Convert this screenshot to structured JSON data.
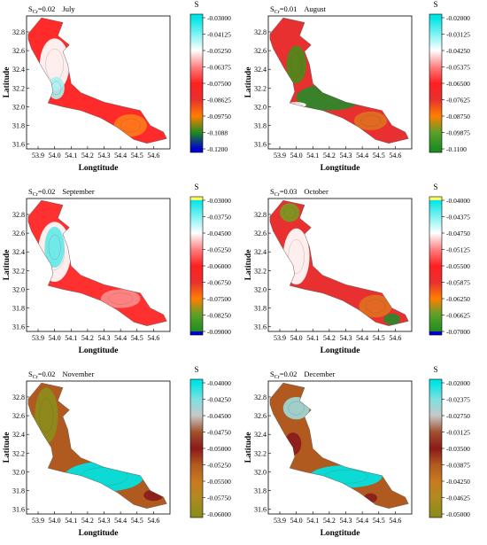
{
  "chart_data": [
    {
      "type": "heatmap",
      "header_prefix": "S",
      "header_sub": "Cr",
      "header_value": "=0.02",
      "month": "July",
      "xlabel": "Longtitude",
      "ylabel": "Latitude",
      "xticks": [
        "53.9",
        "54.0",
        "54.1",
        "54.2",
        "54.3",
        "54.4",
        "54.5",
        "54.6"
      ],
      "yticks": [
        "32.8",
        "32.6",
        "32.4",
        "32.2",
        "32.0",
        "31.8",
        "31.6"
      ],
      "xlim": [
        53.83,
        54.7
      ],
      "ylim": [
        31.55,
        32.97
      ],
      "colorbar": {
        "title": "S",
        "ticks": [
          "-0.03000",
          "-0.04125",
          "-0.05250",
          "-0.06375",
          "-0.07500",
          "-0.08625",
          "-0.09750",
          "-0.1088",
          "-0.1200"
        ],
        "colors": [
          "#00e5e5",
          "#7ff2f2",
          "#ffffff",
          "#ff8080",
          "#ff2020",
          "#e83030",
          "#ff7f00",
          "#1f8c1f",
          "#0000cc"
        ],
        "top_cap": "#00e5e5",
        "bottom_cap": "#0000cc"
      },
      "region": {
        "fill": "#ff2a2a",
        "patches": [
          {
            "color": "#ffffff",
            "cx": 54.0,
            "cy": 32.45,
            "rx": 0.09,
            "ry": 0.28
          },
          {
            "color": "#aaf0f0",
            "cx": 54.01,
            "cy": 32.2,
            "rx": 0.05,
            "ry": 0.12
          },
          {
            "color": "#ff7a1a",
            "cx": 54.46,
            "cy": 31.8,
            "rx": 0.1,
            "ry": 0.12
          }
        ]
      }
    },
    {
      "type": "heatmap",
      "header_prefix": "S",
      "header_sub": "Cr",
      "header_value": "=0.01",
      "month": "August",
      "xlabel": "Longtitude",
      "ylabel": "Latitude",
      "xticks": [
        "53.9",
        "54.0",
        "54.1",
        "54.2",
        "54.3",
        "54.4",
        "54.5",
        "54.6"
      ],
      "yticks": [
        "32.8",
        "32.6",
        "32.4",
        "32.2",
        "32.0",
        "31.8",
        "31.6"
      ],
      "xlim": [
        53.83,
        54.7
      ],
      "ylim": [
        31.55,
        32.97
      ],
      "colorbar": {
        "title": "S",
        "ticks": [
          "-0.02000",
          "-0.03125",
          "-0.04250",
          "-0.05375",
          "-0.06500",
          "-0.07625",
          "-0.08750",
          "-0.09875",
          "-0.1100"
        ],
        "colors": [
          "#00e5e5",
          "#7ff2f2",
          "#ffffff",
          "#ff8080",
          "#ff2020",
          "#e83030",
          "#ff7f00",
          "#5aa02a",
          "#1f8c1f"
        ],
        "top_cap": "#00e5e5",
        "bottom_cap": "#1f8c1f"
      },
      "region": {
        "fill": "#e83030",
        "patches": [
          {
            "color": "#2a8a2a",
            "cx": 54.2,
            "cy": 32.1,
            "rx": 0.2,
            "ry": 0.14
          },
          {
            "color": "#4d8a1a",
            "cx": 54.0,
            "cy": 32.45,
            "rx": 0.06,
            "ry": 0.2
          },
          {
            "color": "#ffffff",
            "cx": 54.0,
            "cy": 32.02,
            "rx": 0.06,
            "ry": 0.03
          },
          {
            "color": "#e07020",
            "cx": 54.45,
            "cy": 31.85,
            "rx": 0.1,
            "ry": 0.1
          }
        ]
      }
    },
    {
      "type": "heatmap",
      "header_prefix": "S",
      "header_sub": "Cr",
      "header_value": "=0.02",
      "month": "September",
      "xlabel": "Longtitude",
      "ylabel": "Latitude",
      "xticks": [
        "53.9",
        "54.0",
        "54.1",
        "54.2",
        "54.3",
        "54.4",
        "54.5",
        "54.6"
      ],
      "yticks": [
        "32.8",
        "32.6",
        "32.4",
        "32.2",
        "32.0",
        "31.8",
        "31.6"
      ],
      "xlim": [
        53.83,
        54.7
      ],
      "ylim": [
        31.55,
        32.97
      ],
      "colorbar": {
        "title": "S",
        "ticks": [
          "-0.03000",
          "-0.03750",
          "-0.04500",
          "-0.05250",
          "-0.06000",
          "-0.06750",
          "-0.07500",
          "-0.08250",
          "-0.09000"
        ],
        "colors": [
          "#00e5e5",
          "#7ff2f2",
          "#ffffff",
          "#ff8080",
          "#ff2020",
          "#e83030",
          "#ff7f00",
          "#5aa02a",
          "#1f8c1f"
        ],
        "top_cap": "#ffff66",
        "bottom_cap": "#0000cc"
      },
      "region": {
        "fill": "#ff3030",
        "patches": [
          {
            "color": "#ffffff",
            "cx": 54.0,
            "cy": 32.4,
            "rx": 0.1,
            "ry": 0.32
          },
          {
            "color": "#66e8e8",
            "cx": 54.0,
            "cy": 32.45,
            "rx": 0.06,
            "ry": 0.22
          },
          {
            "color": "#ff8a8a",
            "cx": 54.4,
            "cy": 31.9,
            "rx": 0.12,
            "ry": 0.1
          }
        ]
      }
    },
    {
      "type": "heatmap",
      "header_prefix": "S",
      "header_sub": "Cr",
      "header_value": "=0.03",
      "month": "October",
      "xlabel": "Longtitude",
      "ylabel": "Latitude",
      "xticks": [
        "53.9",
        "54.0",
        "54.1",
        "54.2",
        "54.3",
        "54.4",
        "54.5",
        "54.6"
      ],
      "yticks": [
        "32.8",
        "32.6",
        "32.4",
        "32.2",
        "32.0",
        "31.8",
        "31.6"
      ],
      "xlim": [
        53.83,
        54.7
      ],
      "ylim": [
        31.55,
        32.97
      ],
      "colorbar": {
        "title": "S",
        "ticks": [
          "-0.04000",
          "-0.04375",
          "-0.04750",
          "-0.05125",
          "-0.05500",
          "-0.05875",
          "-0.06250",
          "-0.06625",
          "-0.07000"
        ],
        "colors": [
          "#00e5e5",
          "#7ff2f2",
          "#ffffff",
          "#ff8080",
          "#ff2020",
          "#e83030",
          "#ff7f00",
          "#5aa02a",
          "#1f8c1f"
        ],
        "top_cap": "#ffff66",
        "bottom_cap": "#0000cc"
      },
      "region": {
        "fill": "#e83030",
        "patches": [
          {
            "color": "#ffffff",
            "cx": 54.0,
            "cy": 32.35,
            "rx": 0.08,
            "ry": 0.3
          },
          {
            "color": "#7a9a20",
            "cx": 53.96,
            "cy": 32.82,
            "rx": 0.06,
            "ry": 0.1
          },
          {
            "color": "#e07020",
            "cx": 54.48,
            "cy": 31.82,
            "rx": 0.1,
            "ry": 0.12
          },
          {
            "color": "#2a8a2a",
            "cx": 54.58,
            "cy": 31.68,
            "rx": 0.05,
            "ry": 0.06
          }
        ]
      }
    },
    {
      "type": "heatmap",
      "header_prefix": "S",
      "header_sub": "Cr",
      "header_value": "=0.02",
      "month": "November",
      "xlabel": "Longtitude",
      "ylabel": "Latitude",
      "xticks": [
        "53.9",
        "54.0",
        "54.1",
        "54.2",
        "54.3",
        "54.4",
        "54.5",
        "54.6"
      ],
      "yticks": [
        "32.8",
        "32.6",
        "32.4",
        "32.2",
        "32.0",
        "31.8",
        "31.6"
      ],
      "xlim": [
        53.83,
        54.7
      ],
      "ylim": [
        31.55,
        32.97
      ],
      "colorbar": {
        "title": "S",
        "ticks": [
          "-0.04000",
          "-0.04250",
          "-0.04500",
          "-0.04750",
          "-0.05000",
          "-0.05250",
          "-0.05500",
          "-0.05750",
          "-0.06000"
        ],
        "colors": [
          "#00e5e5",
          "#7fe0e0",
          "#c8c8c8",
          "#a0522d",
          "#8b1a1a",
          "#b05a20",
          "#c87a20",
          "#b08a20",
          "#8c8c1a"
        ],
        "top_cap": "#00e5e5",
        "bottom_cap": "#8c8c1a"
      },
      "region": {
        "fill": "#b05a20",
        "patches": [
          {
            "color": "#00e5e5",
            "cx": 54.3,
            "cy": 31.95,
            "rx": 0.24,
            "ry": 0.16
          },
          {
            "color": "#8c8c1a",
            "cx": 53.95,
            "cy": 32.6,
            "rx": 0.07,
            "ry": 0.3
          },
          {
            "color": "#8b1a1a",
            "cx": 54.6,
            "cy": 31.75,
            "rx": 0.06,
            "ry": 0.06
          }
        ]
      }
    },
    {
      "type": "heatmap",
      "header_prefix": "S",
      "header_sub": "Cr",
      "header_value": "=0.02",
      "month": "December",
      "xlabel": "Longtitude",
      "ylabel": "Latitude",
      "xticks": [
        "53.9",
        "54.0",
        "54.1",
        "54.2",
        "54.3",
        "54.4",
        "54.5",
        "54.6"
      ],
      "yticks": [
        "32.8",
        "32.6",
        "32.4",
        "32.2",
        "32.0",
        "31.8",
        "31.6"
      ],
      "xlim": [
        53.83,
        54.7
      ],
      "ylim": [
        31.55,
        32.97
      ],
      "colorbar": {
        "title": "S",
        "ticks": [
          "-0.02000",
          "-0.02375",
          "-0.02750",
          "-0.03125",
          "-0.03500",
          "-0.03875",
          "-0.04250",
          "-0.04625",
          "-0.05000"
        ],
        "colors": [
          "#00e5e5",
          "#7fe0e0",
          "#c8c8c8",
          "#a0522d",
          "#8b1a1a",
          "#b05a20",
          "#c87a20",
          "#b08a20",
          "#8c8c1a"
        ],
        "top_cap": "#00e5e5",
        "bottom_cap": "#8c8c1a"
      },
      "region": {
        "fill": "#b05a20",
        "patches": [
          {
            "color": "#00e5e5",
            "cx": 54.3,
            "cy": 31.95,
            "rx": 0.22,
            "ry": 0.12
          },
          {
            "color": "#9ed8d8",
            "cx": 54.0,
            "cy": 32.68,
            "rx": 0.08,
            "ry": 0.12
          },
          {
            "color": "#8b1a1a",
            "cx": 53.98,
            "cy": 32.3,
            "rx": 0.05,
            "ry": 0.12
          },
          {
            "color": "#8b1a1a",
            "cx": 54.45,
            "cy": 31.72,
            "rx": 0.04,
            "ry": 0.05
          }
        ]
      }
    }
  ]
}
